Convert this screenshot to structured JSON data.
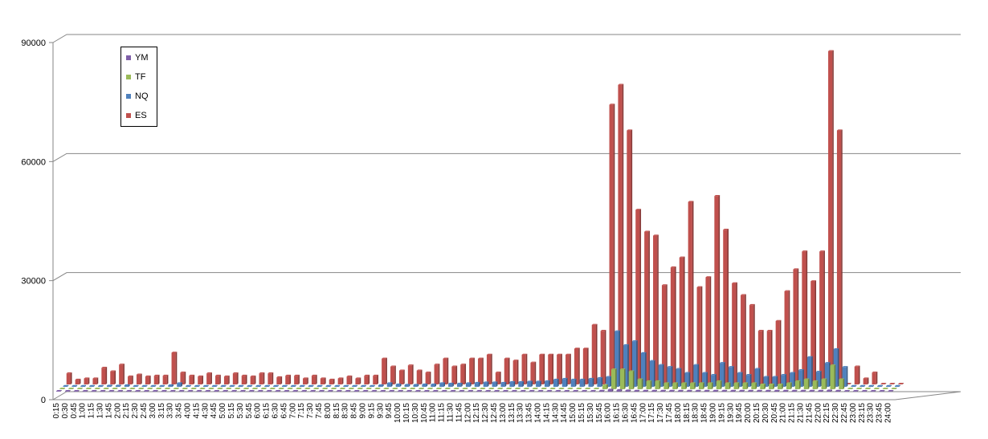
{
  "chart_data": {
    "type": "bar",
    "title": "",
    "xlabel": "",
    "ylabel": "",
    "ylim": [
      0,
      90000
    ],
    "yticks": [
      "0",
      "30000",
      "60000",
      "90000"
    ],
    "grid": true,
    "legend_position": "top-left",
    "categories": [
      "0:15",
      "0:30",
      "0:45",
      "1:00",
      "1:15",
      "1:30",
      "1:45",
      "2:00",
      "2:15",
      "2:30",
      "2:45",
      "3:00",
      "3:15",
      "3:30",
      "3:45",
      "4:00",
      "4:15",
      "4:30",
      "4:45",
      "5:00",
      "5:15",
      "5:30",
      "5:45",
      "6:00",
      "6:15",
      "6:30",
      "6:45",
      "7:00",
      "7:15",
      "7:30",
      "7:45",
      "8:00",
      "8:15",
      "8:30",
      "8:45",
      "9:00",
      "9:15",
      "9:30",
      "9:45",
      "10:00",
      "10:15",
      "10:30",
      "10:45",
      "11:00",
      "11:15",
      "11:30",
      "11:45",
      "12:00",
      "12:15",
      "12:30",
      "12:45",
      "13:00",
      "13:15",
      "13:30",
      "13:45",
      "14:00",
      "14:15",
      "14:30",
      "14:45",
      "15:00",
      "15:15",
      "15:30",
      "15:45",
      "16:00",
      "16:15",
      "16:30",
      "16:45",
      "17:00",
      "17:15",
      "17:30",
      "17:45",
      "18:00",
      "18:15",
      "18:30",
      "18:45",
      "19:00",
      "19:15",
      "19:30",
      "19:45",
      "20:00",
      "20:15",
      "20:30",
      "20:45",
      "21:00",
      "21:15",
      "21:30",
      "21:45",
      "22:00",
      "22:15",
      "22:30",
      "22:45",
      "23:00",
      "23:15",
      "23:30",
      "23:45",
      "24:00"
    ],
    "series": [
      {
        "name": "YM",
        "color": "#7f5fa8",
        "values": [
          0,
          0,
          0,
          0,
          0,
          0,
          0,
          0,
          0,
          0,
          0,
          0,
          0,
          0,
          0,
          0,
          0,
          0,
          0,
          0,
          0,
          0,
          0,
          0,
          0,
          0,
          0,
          0,
          0,
          0,
          0,
          0,
          0,
          0,
          0,
          0,
          0,
          0,
          0,
          0,
          0,
          0,
          0,
          0,
          0,
          0,
          0,
          0,
          0,
          0,
          0,
          0,
          0,
          0,
          0,
          0,
          0,
          0,
          0,
          0,
          0,
          0,
          200,
          500,
          400,
          300,
          200,
          200,
          200,
          200,
          200,
          200,
          200,
          200,
          200,
          200,
          200,
          200,
          200,
          200,
          200,
          200,
          200,
          200,
          200,
          200,
          200,
          200,
          300,
          200,
          0,
          0,
          0,
          0,
          0,
          0
        ]
      },
      {
        "name": "TF",
        "color": "#9bbb59",
        "values": [
          0,
          0,
          0,
          0,
          0,
          0,
          0,
          0,
          0,
          0,
          0,
          0,
          0,
          0,
          0,
          0,
          0,
          0,
          0,
          0,
          0,
          0,
          0,
          0,
          0,
          0,
          0,
          0,
          0,
          0,
          0,
          0,
          0,
          0,
          0,
          0,
          0,
          0,
          0,
          0,
          0,
          0,
          0,
          0,
          0,
          0,
          0,
          0,
          0,
          0,
          0,
          0,
          0,
          0,
          0,
          0,
          0,
          0,
          0,
          0,
          0,
          0,
          1000,
          5000,
          5000,
          4500,
          2500,
          2000,
          2000,
          1500,
          1500,
          1500,
          1500,
          1500,
          1500,
          2000,
          1500,
          1500,
          1500,
          1500,
          1200,
          1200,
          1200,
          1500,
          2000,
          2500,
          2000,
          2500,
          6000,
          2500,
          0,
          0,
          0,
          0,
          0,
          0
        ]
      },
      {
        "name": "NQ",
        "color": "#4f81bd",
        "values": [
          200,
          200,
          200,
          200,
          200,
          300,
          300,
          400,
          200,
          200,
          200,
          200,
          400,
          900,
          200,
          200,
          200,
          200,
          200,
          200,
          200,
          200,
          200,
          200,
          200,
          200,
          200,
          200,
          200,
          200,
          200,
          200,
          200,
          200,
          200,
          200,
          400,
          900,
          600,
          500,
          500,
          600,
          600,
          900,
          800,
          800,
          900,
          1000,
          1100,
          1100,
          1000,
          1200,
          1200,
          1300,
          1300,
          1400,
          1800,
          2000,
          1800,
          1800,
          2000,
          2200,
          2500,
          14000,
          10500,
          11500,
          8500,
          6500,
          5500,
          5000,
          4500,
          3500,
          5500,
          3500,
          3000,
          6000,
          5000,
          3500,
          3000,
          4500,
          2500,
          2500,
          3000,
          3500,
          4200,
          7500,
          3800,
          6000,
          9500,
          5000,
          200,
          200,
          200,
          200,
          200,
          200
        ]
      },
      {
        "name": "ES",
        "color": "#c0504d",
        "values": [
          2800,
          1200,
          1500,
          1500,
          4200,
          3300,
          5000,
          2000,
          2500,
          2000,
          2200,
          2200,
          8000,
          3000,
          2200,
          2000,
          2800,
          2200,
          2000,
          2800,
          2200,
          2000,
          2800,
          2800,
          1800,
          2200,
          2200,
          1500,
          2200,
          1500,
          1200,
          1500,
          2000,
          1500,
          2200,
          2200,
          6500,
          4500,
          3500,
          4800,
          3500,
          3000,
          5000,
          6500,
          4500,
          5000,
          6500,
          6500,
          7500,
          3000,
          6500,
          6000,
          7500,
          5500,
          7500,
          7500,
          7500,
          7500,
          9000,
          9000,
          15000,
          13500,
          70500,
          75500,
          64000,
          44000,
          38500,
          37500,
          25000,
          29500,
          32000,
          46000,
          24500,
          27000,
          47500,
          39000,
          25500,
          22500,
          20000,
          13500,
          13500,
          16000,
          23500,
          29000,
          33500,
          26000,
          33500,
          84000,
          64000,
          0,
          4500,
          1500,
          3000,
          0,
          0,
          0
        ]
      }
    ]
  }
}
